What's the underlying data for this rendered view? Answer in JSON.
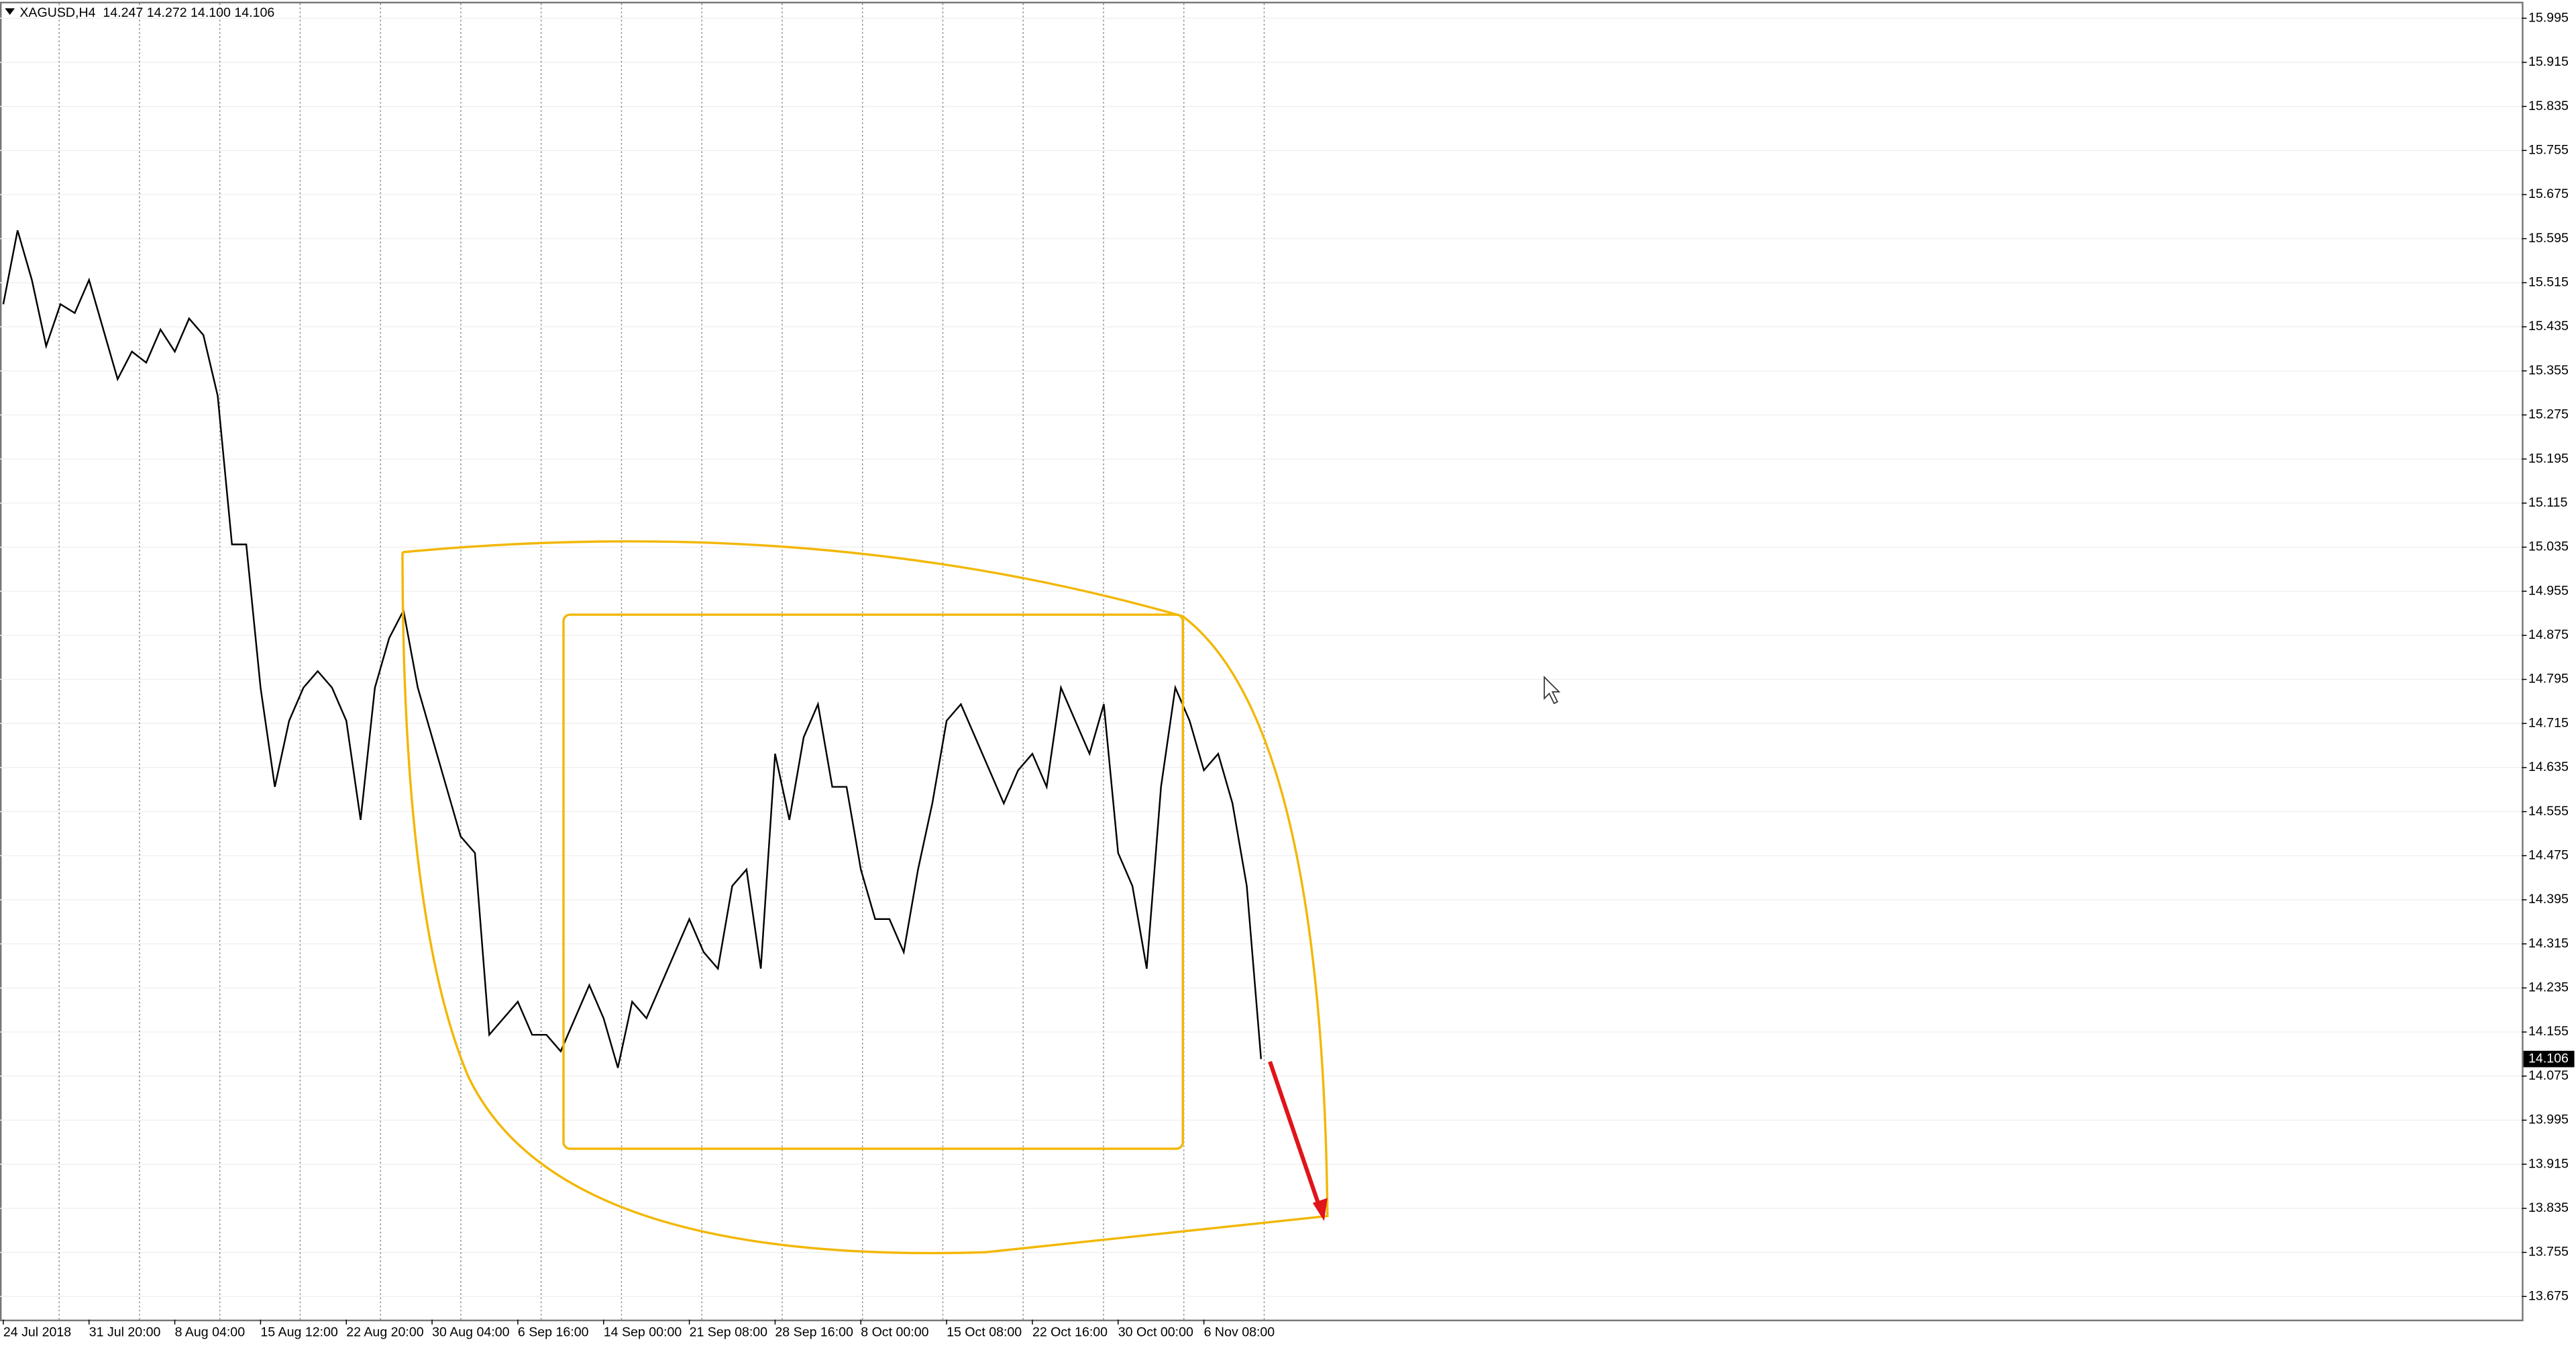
{
  "chart_data": {
    "type": "line",
    "title": "XAGUSD,H4  14.247 14.272 14.100 14.106",
    "categories": [
      "24 Jul 2018",
      null,
      null,
      null,
      null,
      null,
      "31 Jul 20:00",
      null,
      null,
      null,
      null,
      null,
      "8 Aug 04:00",
      null,
      null,
      null,
      null,
      null,
      "15 Aug 12:00",
      null,
      null,
      null,
      null,
      null,
      "22 Aug 20:00",
      null,
      null,
      null,
      null,
      null,
      "30 Aug 04:00",
      null,
      null,
      null,
      null,
      null,
      "6 Sep 16:00",
      null,
      null,
      null,
      null,
      null,
      "14 Sep 00:00",
      null,
      null,
      null,
      null,
      null,
      "21 Sep 08:00",
      null,
      null,
      null,
      null,
      null,
      "28 Sep 16:00",
      null,
      null,
      null,
      null,
      null,
      "8 Oct 00:00",
      null,
      null,
      null,
      null,
      null,
      "15 Oct 08:00",
      null,
      null,
      null,
      null,
      null,
      "22 Oct 16:00",
      null,
      null,
      null,
      null,
      null,
      "30 Oct 00:00",
      null,
      null,
      null,
      null,
      null,
      "6 Nov 08:00",
      null,
      null,
      null,
      null
    ],
    "values": [
      15.476,
      15.61,
      15.52,
      15.4,
      15.476,
      15.46,
      15.52,
      15.43,
      15.34,
      15.39,
      15.37,
      15.43,
      15.39,
      15.45,
      15.42,
      15.31,
      15.04,
      15.04,
      14.78,
      14.6,
      14.72,
      14.78,
      14.81,
      14.78,
      14.72,
      14.54,
      14.78,
      14.87,
      14.92,
      14.78,
      14.69,
      14.6,
      14.51,
      14.48,
      14.15,
      14.18,
      14.21,
      14.15,
      14.15,
      14.12,
      14.18,
      14.24,
      14.18,
      14.09,
      14.21,
      14.18,
      14.24,
      14.3,
      14.36,
      14.3,
      14.27,
      14.42,
      14.45,
      14.27,
      14.66,
      14.54,
      14.69,
      14.75,
      14.6,
      14.6,
      14.45,
      14.36,
      14.36,
      14.3,
      14.45,
      14.57,
      14.72,
      14.75,
      14.69,
      14.63,
      14.57,
      14.63,
      14.66,
      14.6,
      14.78,
      14.72,
      14.66,
      14.75,
      14.48,
      14.42,
      14.27,
      14.6,
      14.78,
      14.72,
      14.63,
      14.66,
      14.57,
      14.42,
      14.106
    ],
    "color": "#000000",
    "last_price": 14.106,
    "ylim": [
      13.633,
      16.022
    ],
    "yticks": [
      15.995,
      15.915,
      15.835,
      15.755,
      15.675,
      15.595,
      15.515,
      15.435,
      15.355,
      15.275,
      15.195,
      15.115,
      15.035,
      14.955,
      14.875,
      14.795,
      14.715,
      14.635,
      14.555,
      14.475,
      14.395,
      14.315,
      14.235,
      14.155,
      14.075,
      13.995,
      13.915,
      13.835,
      13.755,
      13.675
    ],
    "grid": true
  }
}
